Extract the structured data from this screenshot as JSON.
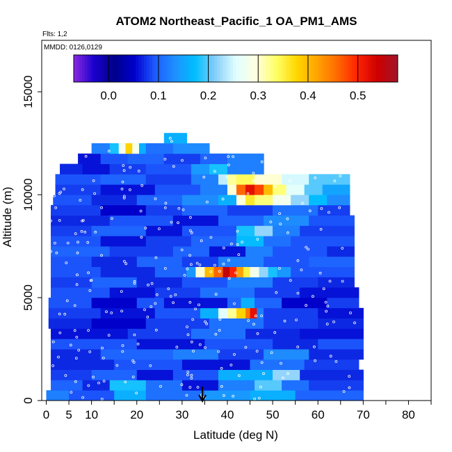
{
  "chart_data": {
    "type": "heatmap",
    "title": "ATOM2 Northeast_Pacific_1 OA_PM1_AMS",
    "flights_label": "Flts: 1,2",
    "dates_label": "MMDD: 0126,0129",
    "xlabel": "Latitude (deg N)",
    "ylabel": "Altitude (m)",
    "xlim": [
      -1,
      85
    ],
    "ylim": [
      0,
      17500
    ],
    "x_ticks": [
      0,
      5,
      10,
      20,
      30,
      40,
      50,
      60,
      70,
      80
    ],
    "x_minor_ticks": [
      15,
      25,
      35,
      45,
      55,
      65,
      75,
      85
    ],
    "y_ticks": [
      0,
      5000,
      10000,
      15000
    ],
    "colorbar": {
      "min": -0.07,
      "max": 0.58,
      "ticks": [
        0.0,
        0.1,
        0.2,
        0.3,
        0.4,
        0.5
      ],
      "tick_labels": [
        "0.0",
        "0.1",
        "0.2",
        "0.3",
        "0.4",
        "0.5"
      ],
      "colors": [
        "#8a2be2",
        "#1a00cc",
        "#00008b",
        "#0000cd",
        "#1e5aff",
        "#1e90ff",
        "#00bfff",
        "#87cefa",
        "#e0ffff",
        "#ffffe0",
        "#ffff66",
        "#ffd700",
        "#ffa500",
        "#ff6a00",
        "#ff2200",
        "#cd0000",
        "#a0152a"
      ]
    },
    "arrow_latitude": 34.5,
    "bands": [
      {
        "alt": 250,
        "lat": [
          0,
          70
        ],
        "segs": [
          [
            0,
            5,
            0.12
          ],
          [
            5,
            15,
            0.09
          ],
          [
            15,
            22,
            0.16
          ],
          [
            22,
            35,
            0.11
          ],
          [
            35,
            45,
            0.14
          ],
          [
            45,
            55,
            0.16
          ],
          [
            55,
            70,
            0.1
          ]
        ]
      },
      {
        "alt": 750,
        "lat": [
          1,
          70
        ],
        "segs": [
          [
            1,
            8,
            0.1
          ],
          [
            8,
            14,
            0.07
          ],
          [
            14,
            22,
            0.18
          ],
          [
            22,
            30,
            0.11
          ],
          [
            30,
            38,
            0.06
          ],
          [
            38,
            46,
            0.12
          ],
          [
            46,
            52,
            0.2
          ],
          [
            52,
            58,
            0.11
          ],
          [
            58,
            70,
            0.08
          ]
        ]
      },
      {
        "alt": 1250,
        "lat": [
          1,
          70
        ],
        "segs": [
          [
            1,
            10,
            0.08
          ],
          [
            10,
            20,
            0.1
          ],
          [
            20,
            28,
            0.06
          ],
          [
            28,
            38,
            0.09
          ],
          [
            38,
            50,
            0.16
          ],
          [
            50,
            56,
            0.22
          ],
          [
            56,
            70,
            0.07
          ]
        ]
      },
      {
        "alt": 1750,
        "lat": [
          1,
          69
        ],
        "segs": [
          [
            1,
            15,
            0.07
          ],
          [
            15,
            30,
            0.09
          ],
          [
            30,
            45,
            0.06
          ],
          [
            45,
            57,
            0.11
          ],
          [
            57,
            69,
            0.08
          ]
        ]
      },
      {
        "alt": 2250,
        "lat": [
          1,
          70
        ],
        "segs": [
          [
            1,
            12,
            0.07
          ],
          [
            12,
            28,
            0.1
          ],
          [
            28,
            38,
            0.12
          ],
          [
            38,
            48,
            0.08
          ],
          [
            48,
            58,
            0.13
          ],
          [
            58,
            70,
            0.07
          ]
        ]
      },
      {
        "alt": 2750,
        "lat": [
          1,
          70
        ],
        "segs": [
          [
            1,
            20,
            0.09
          ],
          [
            20,
            35,
            0.06
          ],
          [
            35,
            50,
            0.09
          ],
          [
            50,
            60,
            0.07
          ],
          [
            60,
            70,
            0.09
          ]
        ]
      },
      {
        "alt": 3250,
        "lat": [
          1,
          70
        ],
        "segs": [
          [
            1,
            18,
            0.06
          ],
          [
            18,
            32,
            0.08
          ],
          [
            32,
            44,
            0.11
          ],
          [
            44,
            56,
            0.07
          ],
          [
            56,
            70,
            0.06
          ]
        ]
      },
      {
        "alt": 3750,
        "lat": [
          0.5,
          70
        ],
        "segs": [
          [
            0.5,
            10,
            0.07
          ],
          [
            10,
            22,
            0.05
          ],
          [
            22,
            36,
            0.08
          ],
          [
            36,
            48,
            0.11
          ],
          [
            48,
            60,
            0.08
          ],
          [
            60,
            70,
            0.07
          ]
        ]
      },
      {
        "alt": 4250,
        "lat": [
          0.5,
          70
        ],
        "segs": [
          [
            0.5,
            12,
            0.08
          ],
          [
            12,
            24,
            0.06
          ],
          [
            24,
            34,
            0.09
          ],
          [
            34,
            38,
            0.16
          ],
          [
            38,
            40,
            0.26
          ],
          [
            40,
            42,
            0.32
          ],
          [
            42,
            44,
            0.38
          ],
          [
            44,
            45,
            0.45
          ],
          [
            45,
            46.5,
            0.52
          ],
          [
            46.5,
            48,
            0.12
          ],
          [
            48,
            60,
            0.08
          ],
          [
            60,
            70,
            0.06
          ]
        ]
      },
      {
        "alt": 4750,
        "lat": [
          0.5,
          69
        ],
        "segs": [
          [
            0.5,
            10,
            0.09
          ],
          [
            10,
            20,
            0.05
          ],
          [
            20,
            26,
            0.09
          ],
          [
            26,
            40,
            0.06
          ],
          [
            40,
            43,
            0.1
          ],
          [
            43,
            46,
            0.16
          ],
          [
            46,
            52,
            0.1
          ],
          [
            52,
            62,
            0.05
          ],
          [
            62,
            69,
            0.08
          ]
        ]
      },
      {
        "alt": 5250,
        "lat": [
          1,
          69
        ],
        "segs": [
          [
            1,
            14,
            0.09
          ],
          [
            14,
            24,
            0.06
          ],
          [
            24,
            34,
            0.08
          ],
          [
            34,
            46,
            0.11
          ],
          [
            46,
            56,
            0.08
          ],
          [
            56,
            69,
            0.06
          ]
        ]
      },
      {
        "alt": 5750,
        "lat": [
          1,
          68
        ],
        "segs": [
          [
            1,
            10,
            0.08
          ],
          [
            10,
            20,
            0.1
          ],
          [
            20,
            30,
            0.07
          ],
          [
            30,
            40,
            0.09
          ],
          [
            40,
            50,
            0.12
          ],
          [
            50,
            60,
            0.08
          ],
          [
            60,
            68,
            0.07
          ]
        ]
      },
      {
        "alt": 6250,
        "lat": [
          1,
          68
        ],
        "segs": [
          [
            1,
            12,
            0.09
          ],
          [
            12,
            24,
            0.07
          ],
          [
            24,
            31,
            0.1
          ],
          [
            31,
            33,
            0.14
          ],
          [
            33,
            35,
            0.3
          ],
          [
            35,
            37,
            0.4
          ],
          [
            37,
            39,
            0.46
          ],
          [
            39,
            40.5,
            0.55
          ],
          [
            40.5,
            42,
            0.5
          ],
          [
            42,
            43.5,
            0.42
          ],
          [
            43.5,
            45,
            0.35
          ],
          [
            45,
            47,
            0.28
          ],
          [
            47,
            49,
            0.22
          ],
          [
            49,
            51,
            0.18
          ],
          [
            51,
            54,
            0.14
          ],
          [
            54,
            68,
            0.09
          ]
        ]
      },
      {
        "alt": 6750,
        "lat": [
          1,
          68
        ],
        "segs": [
          [
            1,
            10,
            0.09
          ],
          [
            10,
            20,
            0.07
          ],
          [
            20,
            30,
            0.1
          ],
          [
            30,
            38,
            0.08
          ],
          [
            38,
            48,
            0.12
          ],
          [
            48,
            58,
            0.09
          ],
          [
            58,
            68,
            0.1
          ]
        ]
      },
      {
        "alt": 7250,
        "lat": [
          1,
          68
        ],
        "segs": [
          [
            1,
            14,
            0.1
          ],
          [
            14,
            28,
            0.08
          ],
          [
            28,
            36,
            0.1
          ],
          [
            36,
            44,
            0.06
          ],
          [
            44,
            50,
            0.12
          ],
          [
            50,
            62,
            0.09
          ],
          [
            62,
            68,
            0.07
          ]
        ]
      },
      {
        "alt": 7750,
        "lat": [
          1,
          68
        ],
        "segs": [
          [
            1,
            12,
            0.09
          ],
          [
            12,
            22,
            0.06
          ],
          [
            22,
            32,
            0.08
          ],
          [
            32,
            42,
            0.1
          ],
          [
            42,
            48,
            0.17
          ],
          [
            48,
            54,
            0.11
          ],
          [
            54,
            68,
            0.09
          ]
        ]
      },
      {
        "alt": 8250,
        "lat": [
          1,
          68
        ],
        "segs": [
          [
            1,
            10,
            0.08
          ],
          [
            10,
            22,
            0.1
          ],
          [
            22,
            30,
            0.06
          ],
          [
            30,
            42,
            0.09
          ],
          [
            42,
            46,
            0.18
          ],
          [
            46,
            50,
            0.22
          ],
          [
            50,
            56,
            0.12
          ],
          [
            56,
            68,
            0.08
          ]
        ]
      },
      {
        "alt": 8750,
        "lat": [
          1,
          68
        ],
        "segs": [
          [
            1,
            14,
            0.07
          ],
          [
            14,
            28,
            0.09
          ],
          [
            28,
            38,
            0.06
          ],
          [
            38,
            48,
            0.1
          ],
          [
            48,
            58,
            0.13
          ],
          [
            58,
            68,
            0.09
          ]
        ]
      },
      {
        "alt": 9250,
        "lat": [
          1,
          67
        ],
        "segs": [
          [
            1,
            12,
            0.08
          ],
          [
            12,
            22,
            0.05
          ],
          [
            22,
            30,
            0.08
          ],
          [
            30,
            40,
            0.1
          ],
          [
            40,
            50,
            0.08
          ],
          [
            50,
            60,
            0.11
          ],
          [
            60,
            67,
            0.08
          ]
        ]
      },
      {
        "alt": 9750,
        "lat": [
          1.5,
          67
        ],
        "segs": [
          [
            1.5,
            10,
            0.09
          ],
          [
            10,
            20,
            0.07
          ],
          [
            20,
            30,
            0.1
          ],
          [
            30,
            38,
            0.13
          ],
          [
            38,
            42,
            0.16
          ],
          [
            42,
            44,
            0.3
          ],
          [
            44,
            46,
            0.36
          ],
          [
            46,
            50,
            0.33
          ],
          [
            50,
            54,
            0.28
          ],
          [
            54,
            58,
            0.22
          ],
          [
            58,
            62,
            0.17
          ],
          [
            62,
            67,
            0.13
          ]
        ]
      },
      {
        "alt": 10250,
        "lat": [
          2,
          67
        ],
        "segs": [
          [
            2,
            12,
            0.08
          ],
          [
            12,
            24,
            0.06
          ],
          [
            24,
            34,
            0.09
          ],
          [
            34,
            40,
            0.12
          ],
          [
            40,
            42,
            0.3
          ],
          [
            42,
            44,
            0.46
          ],
          [
            44,
            46,
            0.52
          ],
          [
            46,
            48,
            0.48
          ],
          [
            48,
            50,
            0.4
          ],
          [
            50,
            53,
            0.33
          ],
          [
            53,
            57,
            0.26
          ],
          [
            57,
            61,
            0.2
          ],
          [
            61,
            67,
            0.15
          ]
        ]
      },
      {
        "alt": 10750,
        "lat": [
          2,
          67
        ],
        "segs": [
          [
            2,
            12,
            0.09
          ],
          [
            12,
            22,
            0.1
          ],
          [
            22,
            32,
            0.08
          ],
          [
            32,
            38,
            0.12
          ],
          [
            38,
            40,
            0.24
          ],
          [
            40,
            42,
            0.32
          ],
          [
            42,
            46,
            0.34
          ],
          [
            46,
            52,
            0.3
          ],
          [
            52,
            58,
            0.25
          ],
          [
            58,
            67,
            0.2
          ]
        ]
      },
      {
        "alt": 11250,
        "lat": [
          3,
          48
        ],
        "segs": [
          [
            3,
            8,
            0.07
          ],
          [
            8,
            14,
            0.06
          ],
          [
            14,
            22,
            0.08
          ],
          [
            22,
            32,
            0.09
          ],
          [
            32,
            36,
            0.14
          ],
          [
            36,
            40,
            0.18
          ],
          [
            40,
            48,
            0.12
          ]
        ]
      },
      {
        "alt": 11750,
        "lat": [
          7,
          48
        ],
        "segs": [
          [
            7,
            12,
            0.06
          ],
          [
            12,
            18,
            0.09
          ],
          [
            18,
            26,
            0.1
          ],
          [
            26,
            34,
            0.08
          ],
          [
            34,
            40,
            0.1
          ],
          [
            40,
            48,
            0.12
          ]
        ]
      },
      {
        "alt": 12250,
        "lat": [
          10,
          36
        ],
        "segs": [
          [
            10,
            14,
            0.12
          ],
          [
            14,
            16,
            0.18
          ],
          [
            16,
            17.5,
            0.28
          ],
          [
            17.5,
            19,
            0.38
          ],
          [
            19,
            20.5,
            0.28
          ],
          [
            20.5,
            22,
            0.16
          ],
          [
            22,
            28,
            0.11
          ],
          [
            28,
            36,
            0.13
          ]
        ]
      },
      {
        "alt": 12750,
        "lat": [
          26,
          31
        ],
        "segs": [
          [
            26,
            31,
            0.16
          ]
        ]
      }
    ]
  }
}
